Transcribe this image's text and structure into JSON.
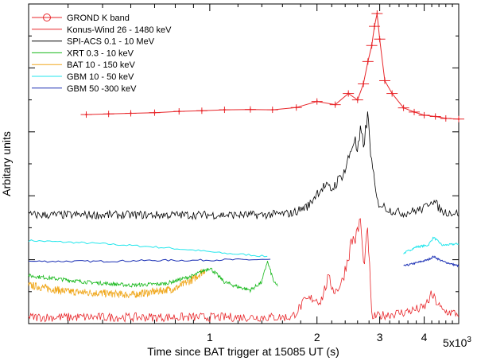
{
  "chart_data": {
    "type": "line",
    "xscale": "log",
    "xlim": [
      310,
      5000
    ],
    "xlabel": "Time since BAT trigger at 15085 UT (s)",
    "ylabel": "Arbitary units",
    "ylim": [
      0,
      10
    ],
    "x_tick_labels": [
      {
        "value": 1000,
        "label": "1"
      },
      {
        "value": 2000,
        "label": "2"
      },
      {
        "value": 3000,
        "label": "3"
      },
      {
        "value": 4000,
        "label": "4"
      }
    ],
    "x_scale_factor_label": "5x10",
    "x_scale_factor_exp": "3",
    "legend_position": "top-left",
    "colors": {
      "grond": "#e8262a",
      "konus": "#e8262a",
      "spi": "#000000",
      "xrt": "#16b81a",
      "bat": "#f0a81e",
      "gbm_low": "#22e6ec",
      "gbm_high": "#1a2fb4"
    },
    "series": [
      {
        "key": "grond",
        "name": "GROND K band",
        "style": "markers",
        "color": "#e8262a",
        "x": [
          450,
          520,
          600,
          700,
          820,
          950,
          1100,
          1300,
          1500,
          1750,
          2000,
          2250,
          2450,
          2600,
          2700,
          2780,
          2850,
          2900,
          2950,
          3000,
          3100,
          3250,
          3500,
          3750,
          4000,
          4300,
          4600,
          5000
        ],
        "y": [
          6.54,
          6.56,
          6.58,
          6.6,
          6.64,
          6.66,
          6.69,
          6.7,
          6.69,
          6.76,
          6.95,
          6.85,
          7.2,
          7.0,
          7.5,
          8.2,
          8.7,
          9.3,
          9.7,
          8.9,
          7.6,
          7.2,
          6.75,
          6.62,
          6.52,
          6.48,
          6.42,
          6.4
        ]
      },
      {
        "key": "konus",
        "name": "Konus-Wind 26 - 1480 keV",
        "style": "noisy",
        "color": "#e8262a",
        "x": [
          310,
          500,
          700,
          1000,
          1400,
          1700,
          1850,
          1950,
          2050,
          2150,
          2250,
          2350,
          2450,
          2500,
          2580,
          2650,
          2700,
          2780,
          2850,
          3000,
          3500,
          4000,
          4200,
          4500,
          5000
        ],
        "y": [
          0.2,
          0.2,
          0.2,
          0.2,
          0.2,
          0.2,
          0.7,
          0.8,
          0.7,
          1.4,
          1.0,
          1.3,
          2.1,
          2.6,
          2.7,
          3.3,
          1.8,
          2.9,
          0.2,
          0.25,
          0.35,
          0.5,
          0.9,
          0.4,
          0.3
        ]
      },
      {
        "key": "spi",
        "name": "SPI-ACS 0.1 - 10 MeV",
        "style": "noisy",
        "color": "#000000",
        "x": [
          310,
          500,
          700,
          1000,
          1400,
          1700,
          1900,
          2000,
          2100,
          2200,
          2300,
          2400,
          2500,
          2550,
          2600,
          2650,
          2700,
          2780,
          2850,
          2950,
          3200,
          3500,
          4000,
          4200,
          4500,
          5000
        ],
        "y": [
          3.4,
          3.4,
          3.4,
          3.4,
          3.4,
          3.45,
          3.7,
          4.1,
          4.3,
          4.2,
          4.5,
          4.8,
          5.5,
          5.8,
          5.3,
          6.0,
          5.6,
          6.5,
          5.0,
          3.8,
          3.55,
          3.45,
          3.6,
          3.9,
          3.5,
          3.45
        ]
      },
      {
        "key": "xrt",
        "name": "XRT 0.3 - 10 keV",
        "style": "noisy",
        "color": "#16b81a",
        "x": [
          310,
          450,
          600,
          750,
          900,
          1000,
          1100,
          1200,
          1300,
          1400,
          1450,
          1500,
          1520,
          1550
        ],
        "y": [
          1.5,
          1.3,
          1.2,
          1.25,
          1.5,
          1.75,
          1.3,
          1.15,
          1.05,
          1.3,
          1.95,
          1.45,
          1.25,
          1.2
        ]
      },
      {
        "key": "bat",
        "name": "BAT 10 - 150 keV",
        "style": "noisy",
        "color": "#f0a81e",
        "x": [
          310,
          400,
          500,
          600,
          700,
          800,
          900,
          970
        ],
        "y": [
          1.2,
          1.0,
          0.95,
          0.9,
          1.0,
          1.1,
          1.4,
          1.7
        ]
      },
      {
        "key": "gbm_low",
        "name": "GBM 10 - 50 keV",
        "style": "smooth",
        "color": "#22e6ec",
        "segments": [
          {
            "x": [
              310,
              500,
              700,
              900,
              1100,
              1300,
              1450
            ],
            "y": [
              2.6,
              2.5,
              2.4,
              2.3,
              2.2,
              2.15,
              2.1
            ]
          },
          {
            "x": [
              3500,
              3800,
              4100,
              4250,
              4500,
              5000
            ],
            "y": [
              2.2,
              2.4,
              2.45,
              2.7,
              2.45,
              2.5
            ]
          }
        ]
      },
      {
        "key": "gbm_high",
        "name": "GBM 50 -300 keV",
        "style": "smooth",
        "color": "#1a2fb4",
        "segments": [
          {
            "x": [
              310,
              500,
              700,
              900,
              1100,
              1300,
              1480
            ],
            "y": [
              1.95,
              1.95,
              1.98,
              1.98,
              2.0,
              2.0,
              2.0
            ]
          },
          {
            "x": [
              3500,
              3800,
              4100,
              4250,
              4500,
              5000
            ],
            "y": [
              1.8,
              1.9,
              2.0,
              2.1,
              1.95,
              1.8
            ]
          }
        ]
      }
    ]
  }
}
